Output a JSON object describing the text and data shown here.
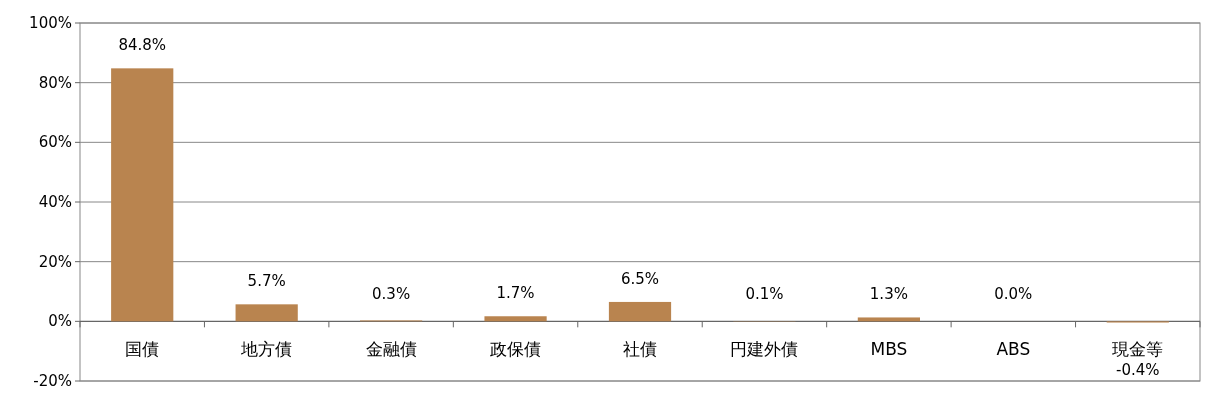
{
  "chart_data": {
    "type": "bar",
    "categories": [
      "国債",
      "地方債",
      "金融債",
      "政保債",
      "社債",
      "円建外債",
      "MBS",
      "ABS",
      "現金等"
    ],
    "values": [
      84.8,
      5.7,
      0.3,
      1.7,
      6.5,
      0.1,
      1.3,
      0.0,
      -0.4
    ],
    "value_labels": [
      "84.8%",
      "5.7%",
      "0.3%",
      "1.7%",
      "6.5%",
      "0.1%",
      "1.3%",
      "0.0%",
      "-0.4%"
    ],
    "color": "#b9844f",
    "ylim": [
      -20,
      100
    ],
    "yticks": [
      {
        "value": -20,
        "label": "-20%"
      },
      {
        "value": 0,
        "label": "0%"
      },
      {
        "value": 20,
        "label": "20%"
      },
      {
        "value": 40,
        "label": "40%"
      },
      {
        "value": 60,
        "label": "60%"
      },
      {
        "value": 80,
        "label": "80%"
      },
      {
        "value": 100,
        "label": "100%"
      }
    ],
    "grid": "y"
  }
}
